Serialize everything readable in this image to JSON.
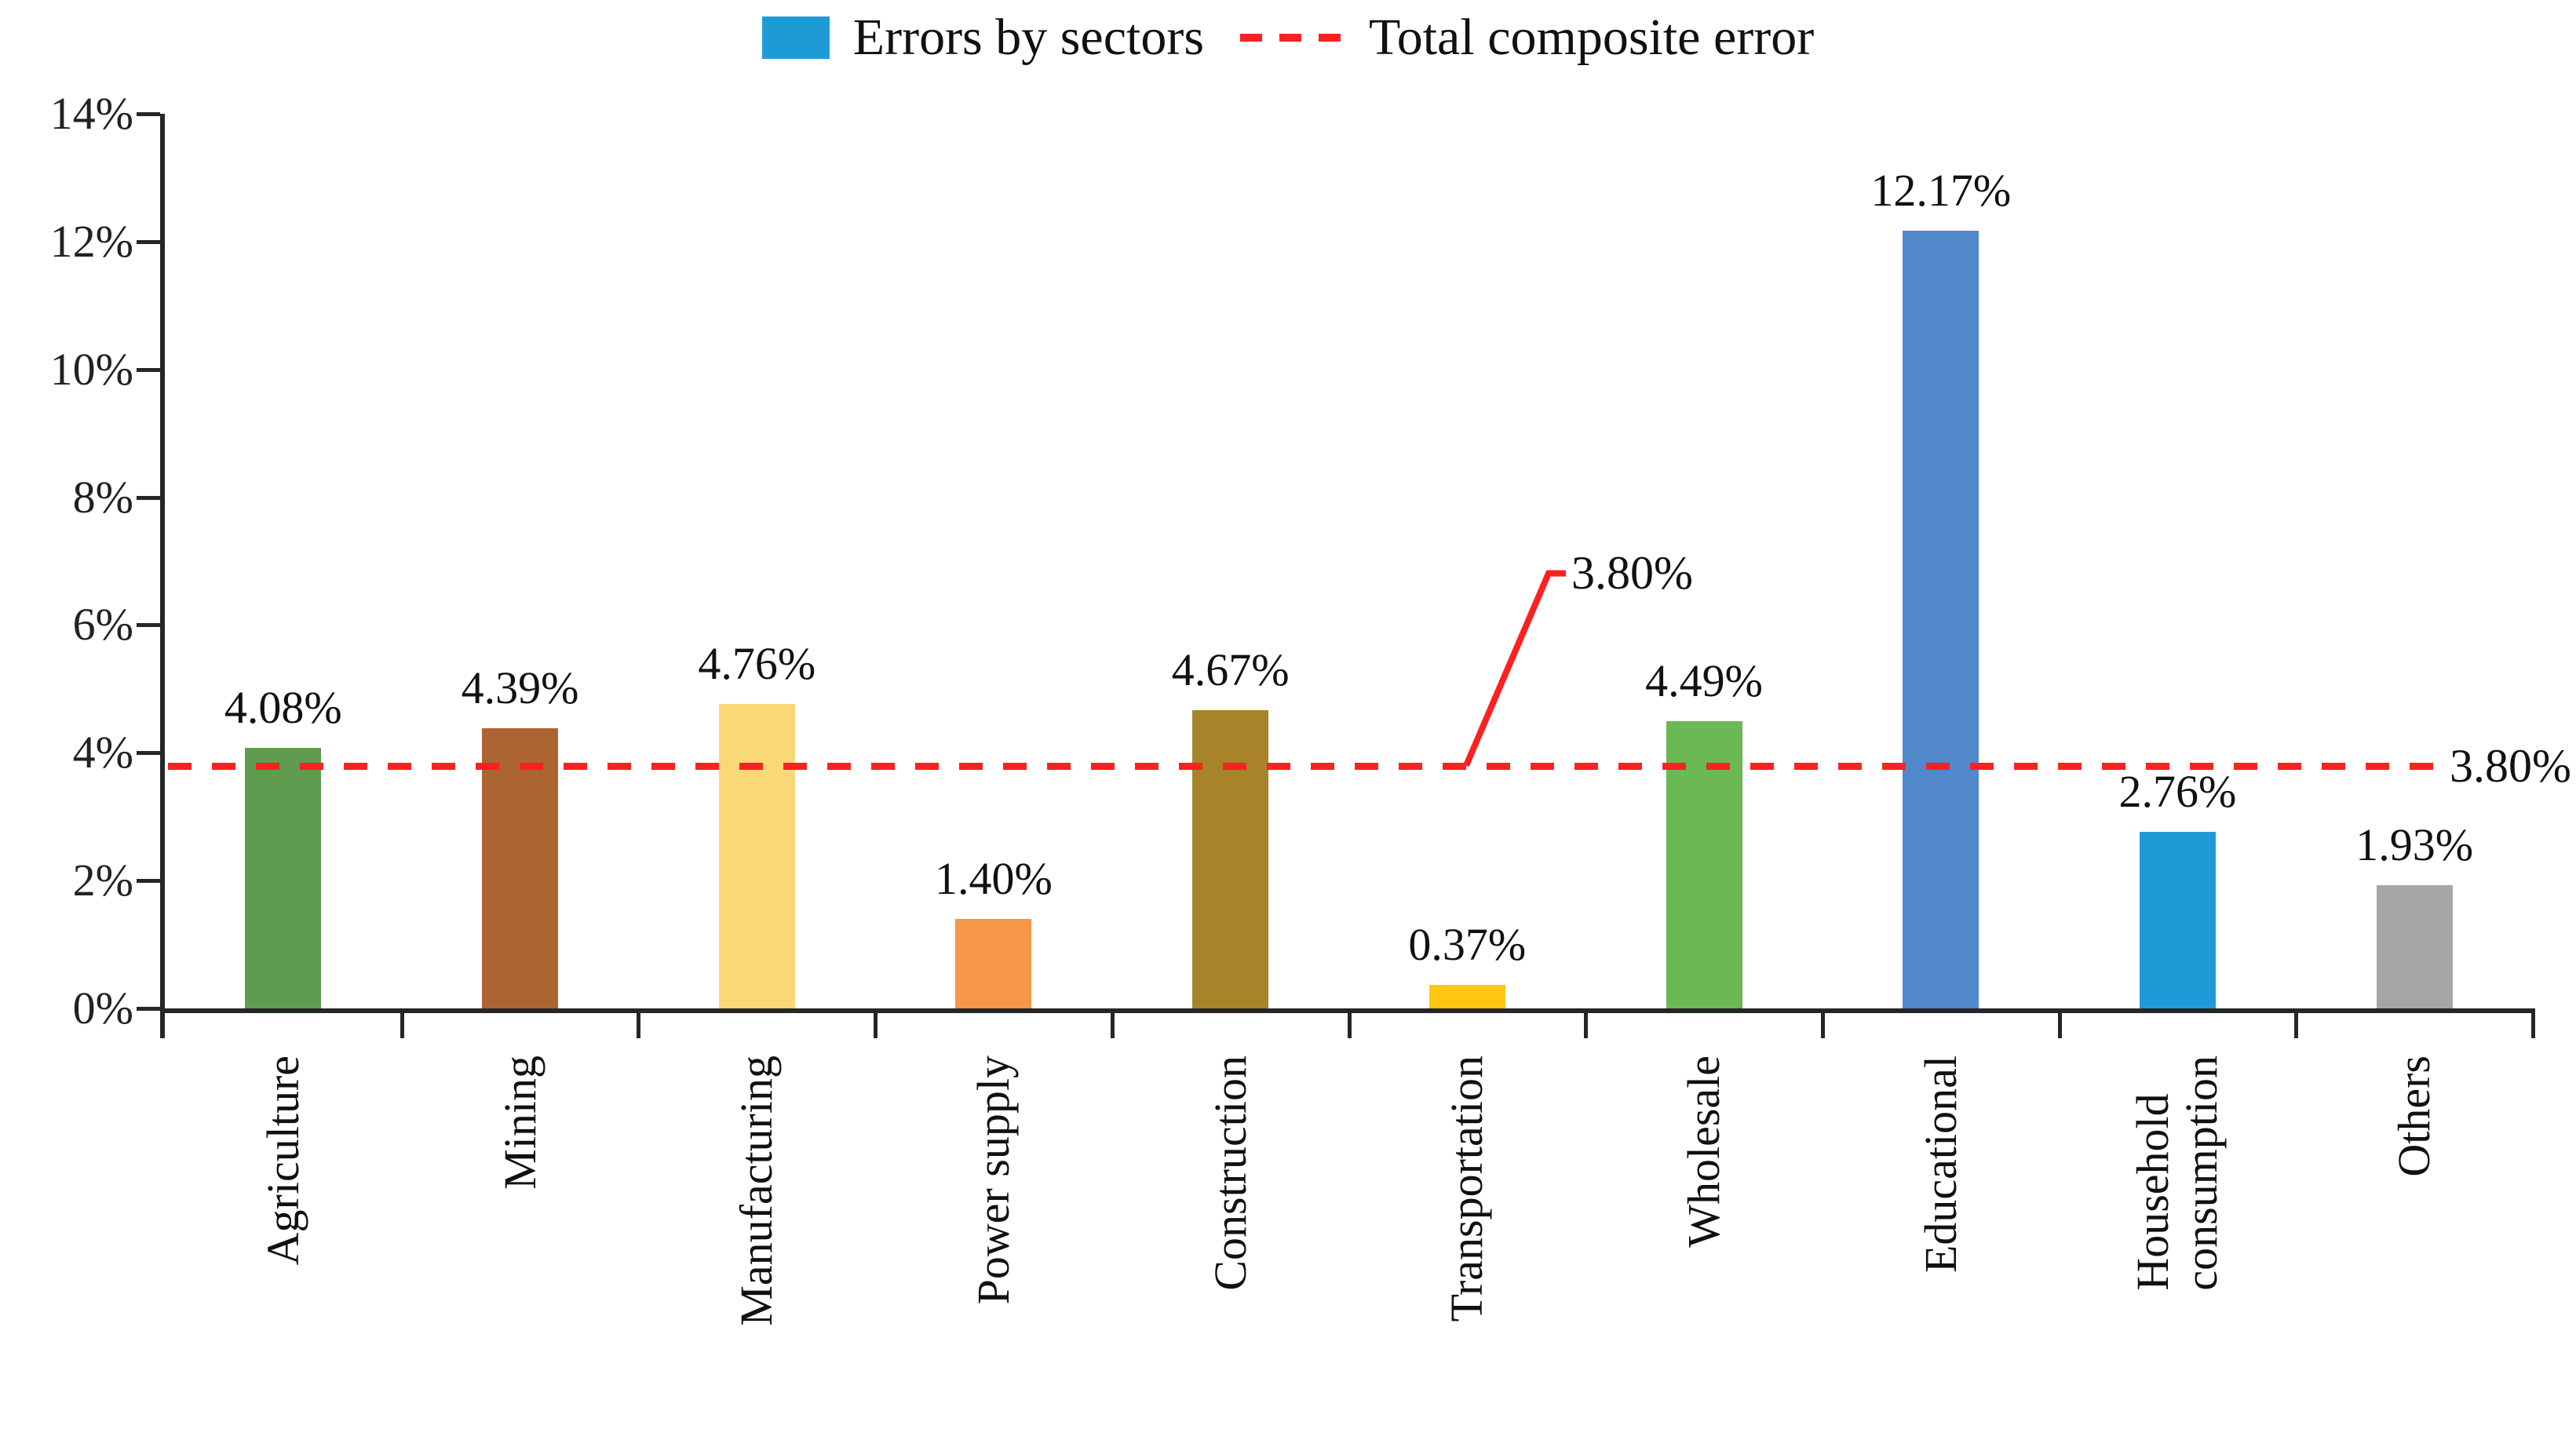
{
  "chart_data": {
    "type": "bar",
    "categories": [
      "Agriculture",
      "Mining",
      "Manufacturing",
      "Power supply",
      "Construction",
      "Transportation",
      "Wholesale",
      "Educational",
      "Household\nconsumption",
      "Others"
    ],
    "values": [
      4.08,
      4.39,
      4.76,
      1.4,
      4.67,
      0.37,
      4.49,
      12.17,
      2.76,
      1.93
    ],
    "value_labels": [
      "4.08%",
      "4.39%",
      "4.76%",
      "1.40%",
      "4.67%",
      "0.37%",
      "4.49%",
      "12.17%",
      "2.76%",
      "1.93%"
    ],
    "bar_colors": [
      "#5F9C50",
      "#AC6433",
      "#FBD877",
      "#F79646",
      "#A8832A",
      "#FFC613",
      "#6BB854",
      "#5189CB",
      "#1E9BD7",
      "#A6A6A6"
    ],
    "title": "",
    "xlabel": "",
    "ylabel": "",
    "y_axis": {
      "min": 0,
      "max": 14,
      "step": 2,
      "tick_labels": [
        "0%",
        "2%",
        "4%",
        "6%",
        "8%",
        "10%",
        "12%",
        "14%"
      ]
    },
    "grid": false,
    "legend": {
      "position": "top-center",
      "items": [
        {
          "label": "Errors by sectors",
          "swatch": "square",
          "color": "#1E9BD7"
        },
        {
          "label": "Total composite error",
          "swatch": "dashed-line",
          "color": "#FB2121"
        }
      ]
    },
    "reference_line": {
      "name": "Total composite error",
      "value": 3.8,
      "label": "3.80%",
      "color": "#FB2121",
      "style": "dashed"
    },
    "axis_color": "#262626"
  }
}
